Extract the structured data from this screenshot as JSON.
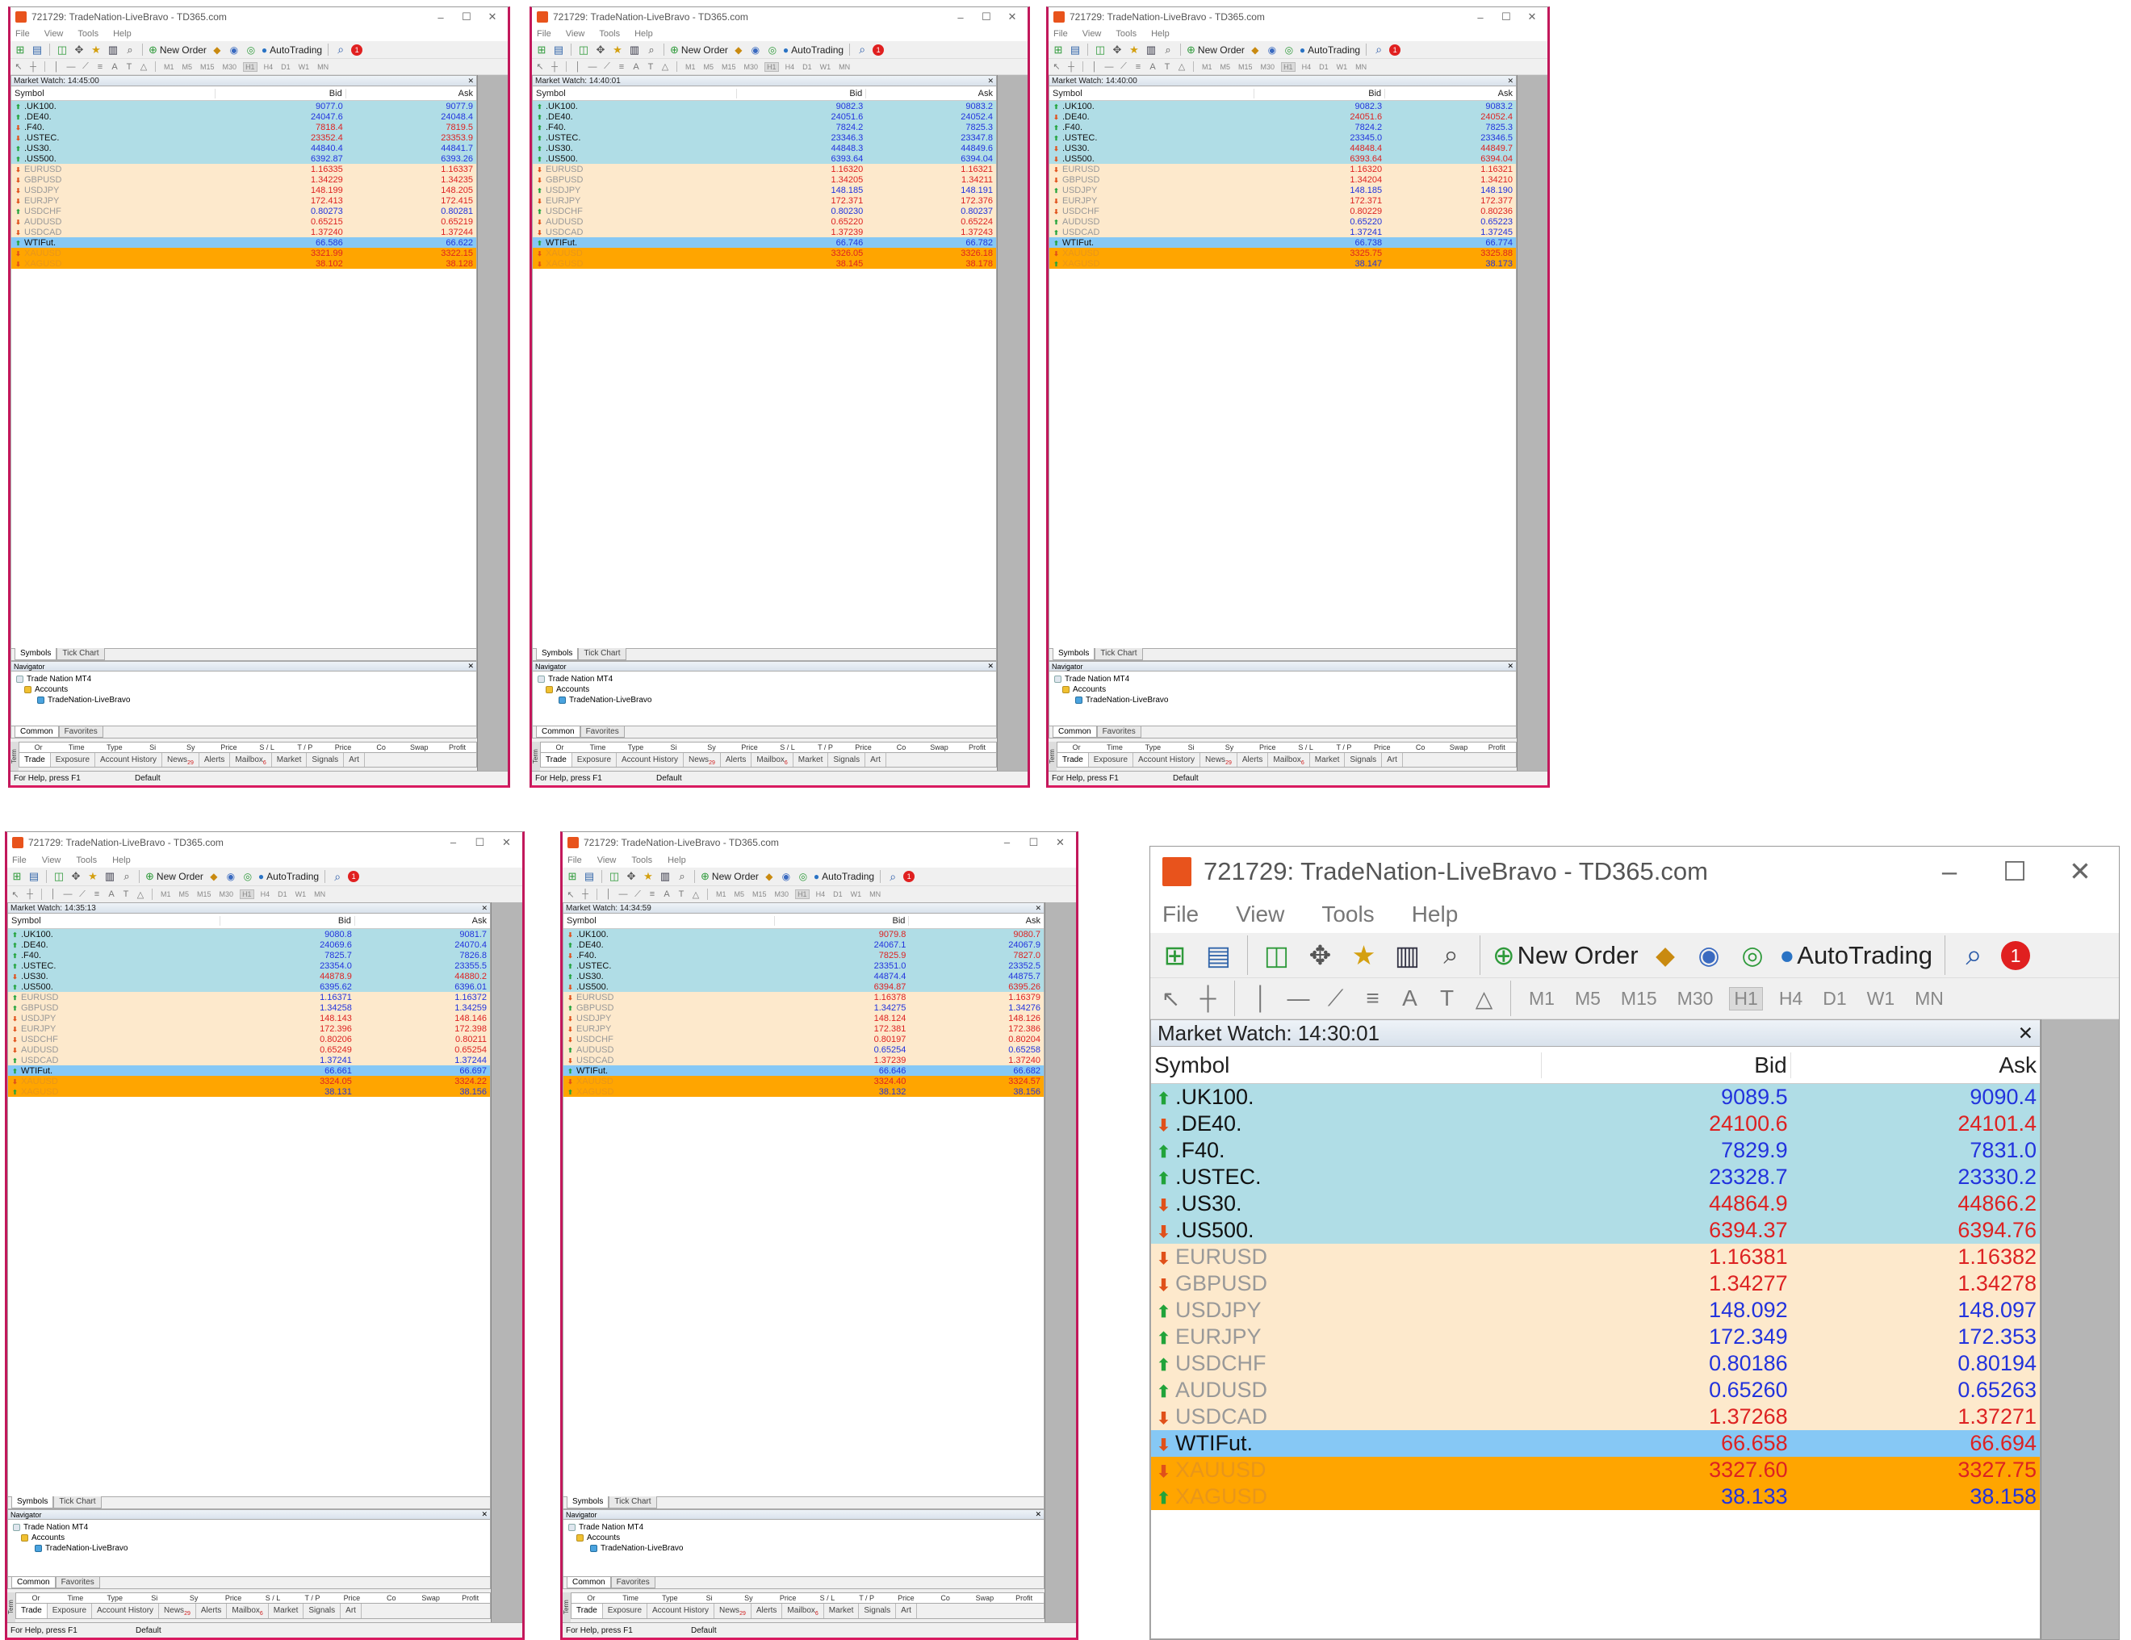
{
  "common": {
    "title": "721729: TradeNation-LiveBravo - TD365.com",
    "menu": [
      "File",
      "View",
      "Tools",
      "Help"
    ],
    "toolbar": {
      "new_order": "New Order",
      "autotrading": "AutoTrading",
      "alert_count": "1"
    },
    "timeframes": [
      "M1",
      "M5",
      "M15",
      "M30",
      "H1",
      "H4",
      "D1",
      "W1",
      "MN"
    ],
    "symbol_tabs": [
      "Symbols",
      "Tick Chart"
    ],
    "columns": {
      "symbol": "Symbol",
      "bid": "Bid",
      "ask": "Ask"
    },
    "navigator": {
      "title": "Navigator",
      "root": "Trade Nation MT4",
      "accounts": "Accounts",
      "account": "TradeNation-LiveBravo",
      "tabs": [
        "Common",
        "Favorites"
      ]
    },
    "terminal": {
      "label": "Term",
      "header": [
        "Or",
        "Time",
        "Type",
        "Si",
        "Sy",
        "Price",
        "S / L",
        "T / P",
        "Price",
        "Co",
        "Swap",
        "Profit"
      ],
      "tabs": [
        {
          "label": "Trade",
          "sup": ""
        },
        {
          "label": "Exposure",
          "sup": ""
        },
        {
          "label": "Account History",
          "sup": ""
        },
        {
          "label": "News",
          "sup": "29"
        },
        {
          "label": "Alerts",
          "sup": ""
        },
        {
          "label": "Mailbox",
          "sup": "6"
        },
        {
          "label": "Market",
          "sup": ""
        },
        {
          "label": "Signals",
          "sup": ""
        },
        {
          "label": "Art",
          "sup": ""
        }
      ]
    },
    "status": {
      "help": "For Help, press F1",
      "profile": "Default"
    },
    "symbols": [
      ".UK100.",
      ".DE40.",
      ".F40.",
      ".USTEC.",
      ".US30.",
      ".US500.",
      "EURUSD",
      "GBPUSD",
      "USDJPY",
      "EURJPY",
      "USDCHF",
      "AUDUSD",
      "USDCAD",
      "WTIFut.",
      "XAUUSD",
      "XAGUSD"
    ],
    "categories": [
      "idx",
      "idx",
      "idx",
      "idx",
      "idx",
      "idx",
      "fx",
      "fx",
      "fx",
      "fx",
      "fx",
      "fx",
      "fx",
      "wti",
      "met",
      "met"
    ],
    "colors": {
      "index_row": "#b0dde6",
      "fx_row": "#fde9cc",
      "wti_row": "#86c8f5",
      "metal_row": "#ffa500",
      "price_up": "#2233dd",
      "price_down": "#dd2222",
      "arrow_up": "#21a33a",
      "arrow_down": "#e0501a"
    }
  },
  "windows": [
    {
      "market_watch": "Market Watch: 14:45:00",
      "rows": [
        {
          "bid": "9077.0",
          "ask": "9077.9",
          "d": "up"
        },
        {
          "bid": "24047.6",
          "ask": "24048.4",
          "d": "up"
        },
        {
          "bid": "7818.4",
          "ask": "7819.5",
          "d": "down"
        },
        {
          "bid": "23352.4",
          "ask": "23353.9",
          "d": "down"
        },
        {
          "bid": "44840.4",
          "ask": "44841.7",
          "d": "up"
        },
        {
          "bid": "6392.87",
          "ask": "6393.26",
          "d": "up"
        },
        {
          "bid": "1.16335",
          "ask": "1.16337",
          "d": "down"
        },
        {
          "bid": "1.34229",
          "ask": "1.34235",
          "d": "down"
        },
        {
          "bid": "148.199",
          "ask": "148.205",
          "d": "down"
        },
        {
          "bid": "172.413",
          "ask": "172.415",
          "d": "down"
        },
        {
          "bid": "0.80273",
          "ask": "0.80281",
          "d": "up"
        },
        {
          "bid": "0.65215",
          "ask": "0.65219",
          "d": "down"
        },
        {
          "bid": "1.37240",
          "ask": "1.37244",
          "d": "down"
        },
        {
          "bid": "66.586",
          "ask": "66.622",
          "d": "up"
        },
        {
          "bid": "3321.99",
          "ask": "3322.15",
          "d": "down"
        },
        {
          "bid": "38.102",
          "ask": "38.128",
          "d": "down"
        }
      ]
    },
    {
      "market_watch": "Market Watch: 14:40:01",
      "rows": [
        {
          "bid": "9082.3",
          "ask": "9083.2",
          "d": "up"
        },
        {
          "bid": "24051.6",
          "ask": "24052.4",
          "d": "up"
        },
        {
          "bid": "7824.2",
          "ask": "7825.3",
          "d": "up"
        },
        {
          "bid": "23346.3",
          "ask": "23347.8",
          "d": "up"
        },
        {
          "bid": "44848.3",
          "ask": "44849.6",
          "d": "up"
        },
        {
          "bid": "6393.64",
          "ask": "6394.04",
          "d": "up"
        },
        {
          "bid": "1.16320",
          "ask": "1.16321",
          "d": "down"
        },
        {
          "bid": "1.34205",
          "ask": "1.34211",
          "d": "down"
        },
        {
          "bid": "148.185",
          "ask": "148.191",
          "d": "up"
        },
        {
          "bid": "172.371",
          "ask": "172.376",
          "d": "down"
        },
        {
          "bid": "0.80230",
          "ask": "0.80237",
          "d": "up"
        },
        {
          "bid": "0.65220",
          "ask": "0.65224",
          "d": "down"
        },
        {
          "bid": "1.37239",
          "ask": "1.37243",
          "d": "down"
        },
        {
          "bid": "66.746",
          "ask": "66.782",
          "d": "up"
        },
        {
          "bid": "3326.05",
          "ask": "3326.18",
          "d": "down"
        },
        {
          "bid": "38.145",
          "ask": "38.178",
          "d": "down"
        }
      ]
    },
    {
      "market_watch": "Market Watch: 14:40:00",
      "rows": [
        {
          "bid": "9082.3",
          "ask": "9083.2",
          "d": "up"
        },
        {
          "bid": "24051.6",
          "ask": "24052.4",
          "d": "down"
        },
        {
          "bid": "7824.2",
          "ask": "7825.3",
          "d": "up"
        },
        {
          "bid": "23345.0",
          "ask": "23346.5",
          "d": "up"
        },
        {
          "bid": "44848.4",
          "ask": "44849.7",
          "d": "down"
        },
        {
          "bid": "6393.64",
          "ask": "6394.04",
          "d": "down"
        },
        {
          "bid": "1.16320",
          "ask": "1.16321",
          "d": "down"
        },
        {
          "bid": "1.34204",
          "ask": "1.34210",
          "d": "down"
        },
        {
          "bid": "148.185",
          "ask": "148.190",
          "d": "up"
        },
        {
          "bid": "172.371",
          "ask": "172.377",
          "d": "down"
        },
        {
          "bid": "0.80229",
          "ask": "0.80236",
          "d": "down"
        },
        {
          "bid": "0.65220",
          "ask": "0.65223",
          "d": "up"
        },
        {
          "bid": "1.37241",
          "ask": "1.37245",
          "d": "up"
        },
        {
          "bid": "66.738",
          "ask": "66.774",
          "d": "up"
        },
        {
          "bid": "3325.75",
          "ask": "3325.88",
          "d": "down"
        },
        {
          "bid": "38.147",
          "ask": "38.173",
          "d": "up"
        }
      ]
    },
    {
      "market_watch": "Market Watch: 14:35:13",
      "rows": [
        {
          "bid": "9080.8",
          "ask": "9081.7",
          "d": "up"
        },
        {
          "bid": "24069.6",
          "ask": "24070.4",
          "d": "up"
        },
        {
          "bid": "7825.7",
          "ask": "7826.8",
          "d": "up"
        },
        {
          "bid": "23354.0",
          "ask": "23355.5",
          "d": "up"
        },
        {
          "bid": "44878.9",
          "ask": "44880.2",
          "d": "down"
        },
        {
          "bid": "6395.62",
          "ask": "6396.01",
          "d": "up"
        },
        {
          "bid": "1.16371",
          "ask": "1.16372",
          "d": "up"
        },
        {
          "bid": "1.34258",
          "ask": "1.34259",
          "d": "up"
        },
        {
          "bid": "148.143",
          "ask": "148.146",
          "d": "down"
        },
        {
          "bid": "172.396",
          "ask": "172.398",
          "d": "down"
        },
        {
          "bid": "0.80206",
          "ask": "0.80211",
          "d": "down"
        },
        {
          "bid": "0.65249",
          "ask": "0.65254",
          "d": "down"
        },
        {
          "bid": "1.37241",
          "ask": "1.37244",
          "d": "up"
        },
        {
          "bid": "66.661",
          "ask": "66.697",
          "d": "up"
        },
        {
          "bid": "3324.05",
          "ask": "3324.22",
          "d": "down"
        },
        {
          "bid": "38.131",
          "ask": "38.156",
          "d": "up"
        }
      ]
    },
    {
      "market_watch": "Market Watch: 14:34:59",
      "rows": [
        {
          "bid": "9079.8",
          "ask": "9080.7",
          "d": "down"
        },
        {
          "bid": "24067.1",
          "ask": "24067.9",
          "d": "up"
        },
        {
          "bid": "7825.9",
          "ask": "7827.0",
          "d": "down"
        },
        {
          "bid": "23351.0",
          "ask": "23352.5",
          "d": "up"
        },
        {
          "bid": "44874.4",
          "ask": "44875.7",
          "d": "up"
        },
        {
          "bid": "6394.87",
          "ask": "6395.26",
          "d": "down"
        },
        {
          "bid": "1.16378",
          "ask": "1.16379",
          "d": "down"
        },
        {
          "bid": "1.34275",
          "ask": "1.34276",
          "d": "up"
        },
        {
          "bid": "148.124",
          "ask": "148.126",
          "d": "down"
        },
        {
          "bid": "172.381",
          "ask": "172.386",
          "d": "down"
        },
        {
          "bid": "0.80197",
          "ask": "0.80204",
          "d": "down"
        },
        {
          "bid": "0.65254",
          "ask": "0.65258",
          "d": "up"
        },
        {
          "bid": "1.37239",
          "ask": "1.37240",
          "d": "down"
        },
        {
          "bid": "66.646",
          "ask": "66.682",
          "d": "up"
        },
        {
          "bid": "3324.40",
          "ask": "3324.57",
          "d": "down"
        },
        {
          "bid": "38.132",
          "ask": "38.156",
          "d": "up"
        }
      ]
    },
    {
      "market_watch": "Market Watch: 14:30:01",
      "rows": [
        {
          "bid": "9089.5",
          "ask": "9090.4",
          "d": "up"
        },
        {
          "bid": "24100.6",
          "ask": "24101.4",
          "d": "down"
        },
        {
          "bid": "7829.9",
          "ask": "7831.0",
          "d": "up"
        },
        {
          "bid": "23328.7",
          "ask": "23330.2",
          "d": "up"
        },
        {
          "bid": "44864.9",
          "ask": "44866.2",
          "d": "down"
        },
        {
          "bid": "6394.37",
          "ask": "6394.76",
          "d": "down"
        },
        {
          "bid": "1.16381",
          "ask": "1.16382",
          "d": "down"
        },
        {
          "bid": "1.34277",
          "ask": "1.34278",
          "d": "down"
        },
        {
          "bid": "148.092",
          "ask": "148.097",
          "d": "up"
        },
        {
          "bid": "172.349",
          "ask": "172.353",
          "d": "up"
        },
        {
          "bid": "0.80186",
          "ask": "0.80194",
          "d": "up"
        },
        {
          "bid": "0.65260",
          "ask": "0.65263",
          "d": "up"
        },
        {
          "bid": "1.37268",
          "ask": "1.37271",
          "d": "down"
        },
        {
          "bid": "66.658",
          "ask": "66.694",
          "d": "down"
        },
        {
          "bid": "3327.60",
          "ask": "3327.75",
          "d": "down"
        },
        {
          "bid": "38.133",
          "ask": "38.158",
          "d": "up"
        }
      ]
    }
  ]
}
